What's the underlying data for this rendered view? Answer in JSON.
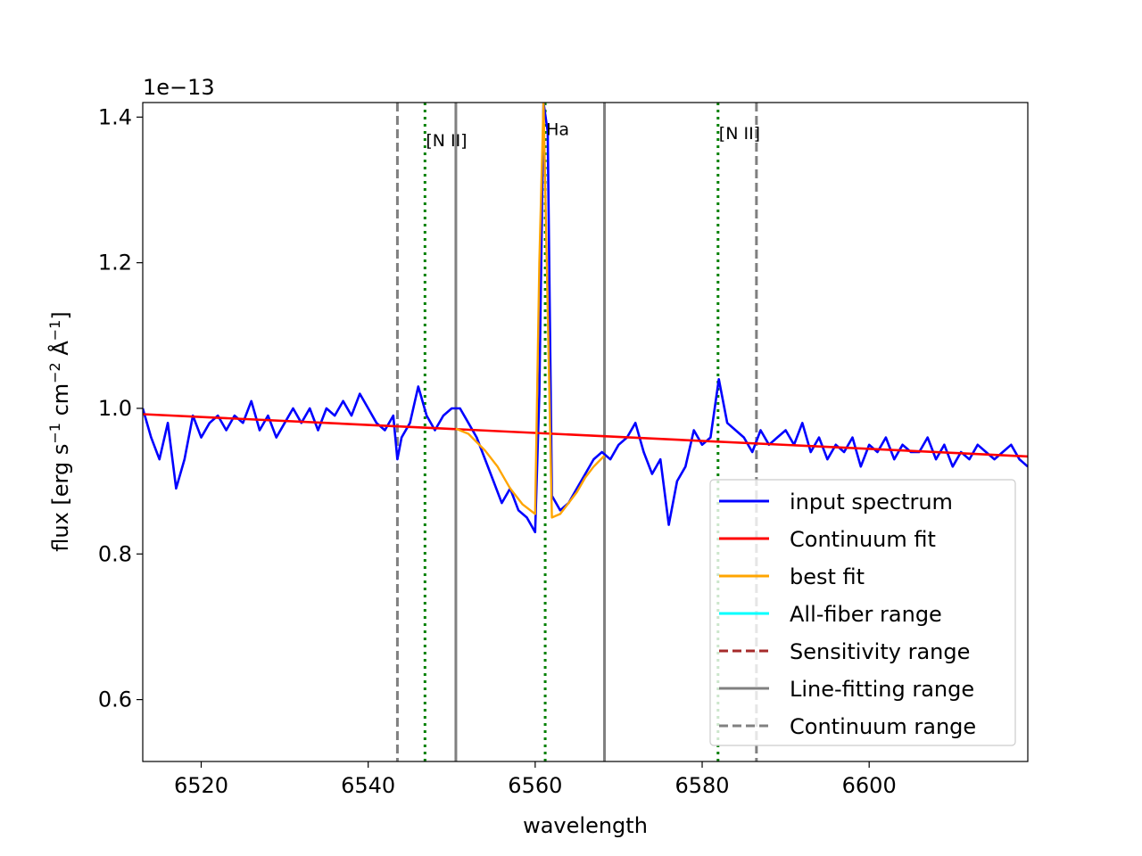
{
  "chart_data": {
    "type": "line",
    "xlabel": "wavelength",
    "ylabel_parts": [
      "flux [erg s",
      "−1",
      " cm",
      "−2",
      " Å",
      "−1",
      "]"
    ],
    "y_offset_text": "1e−13",
    "xlim": [
      6513,
      6619
    ],
    "ylim": [
      0.515,
      1.42
    ],
    "x_ticks": [
      6520,
      6540,
      6560,
      6580,
      6600
    ],
    "y_ticks": [
      0.6,
      0.8,
      1.0,
      1.2,
      1.4
    ],
    "x_tick_labels": [
      "6520",
      "6540",
      "6560",
      "6580",
      "6600"
    ],
    "y_tick_labels": [
      "0.6",
      "0.8",
      "1.0",
      "1.2",
      "1.4"
    ],
    "series": [
      {
        "name": "input spectrum",
        "color": "#0000ff",
        "x": [
          6513,
          6514,
          6515,
          6516,
          6517,
          6518,
          6519,
          6520,
          6521,
          6522,
          6523,
          6524,
          6525,
          6526,
          6527,
          6528,
          6529,
          6530,
          6531,
          6532,
          6533,
          6534,
          6535,
          6536,
          6537,
          6538,
          6539,
          6540,
          6541,
          6542,
          6543,
          6543.5,
          6544,
          6545,
          6546,
          6547,
          6548,
          6549,
          6550,
          6551,
          6552,
          6553,
          6554,
          6555,
          6556,
          6557,
          6558,
          6559,
          6560,
          6560.5,
          6561,
          6561.5,
          6562,
          6563,
          6564,
          6565,
          6566,
          6567,
          6568,
          6569,
          6570,
          6571,
          6572,
          6573,
          6574,
          6575,
          6576,
          6577,
          6578,
          6579,
          6580,
          6581,
          6582,
          6583,
          6584,
          6585,
          6586,
          6587,
          6588,
          6589,
          6590,
          6591,
          6592,
          6593,
          6594,
          6595,
          6596,
          6597,
          6598,
          6599,
          6600,
          6601,
          6602,
          6603,
          6604,
          6605,
          6606,
          6607,
          6608,
          6609,
          6610,
          6611,
          6612,
          6613,
          6614,
          6615,
          6616,
          6617,
          6618,
          6619
        ],
        "y": [
          1.0,
          0.96,
          0.93,
          0.98,
          0.89,
          0.93,
          0.99,
          0.96,
          0.98,
          0.99,
          0.97,
          0.99,
          0.98,
          1.01,
          0.97,
          0.99,
          0.96,
          0.98,
          1.0,
          0.98,
          1.0,
          0.97,
          1.0,
          0.99,
          1.01,
          0.99,
          1.02,
          1.0,
          0.98,
          0.97,
          0.99,
          0.93,
          0.96,
          0.98,
          1.03,
          0.99,
          0.97,
          0.99,
          1.0,
          1.0,
          0.98,
          0.96,
          0.93,
          0.9,
          0.87,
          0.89,
          0.86,
          0.85,
          0.83,
          1.02,
          1.42,
          1.38,
          0.88,
          0.86,
          0.87,
          0.89,
          0.91,
          0.93,
          0.94,
          0.93,
          0.95,
          0.96,
          0.98,
          0.94,
          0.91,
          0.93,
          0.84,
          0.9,
          0.92,
          0.97,
          0.95,
          0.96,
          1.04,
          0.98,
          0.97,
          0.96,
          0.94,
          0.97,
          0.95,
          0.96,
          0.97,
          0.95,
          0.98,
          0.94,
          0.96,
          0.93,
          0.95,
          0.94,
          0.96,
          0.92,
          0.95,
          0.94,
          0.96,
          0.93,
          0.95,
          0.94,
          0.94,
          0.96,
          0.93,
          0.95,
          0.92,
          0.94,
          0.93,
          0.95,
          0.94,
          0.93,
          0.94,
          0.95,
          0.93,
          0.92
        ]
      },
      {
        "name": "Continuum fit",
        "color": "#ff0000",
        "x": [
          6513,
          6619
        ],
        "y": [
          0.992,
          0.934
        ]
      },
      {
        "name": "best fit",
        "color": "#ffa500",
        "x": [
          6550.5,
          6552,
          6554,
          6555.5,
          6557,
          6558.5,
          6560,
          6560.5,
          6561,
          6562,
          6563,
          6564,
          6565,
          6566,
          6567,
          6568.3
        ],
        "y": [
          0.972,
          0.965,
          0.942,
          0.92,
          0.89,
          0.868,
          0.855,
          1.2,
          1.42,
          0.85,
          0.855,
          0.87,
          0.885,
          0.905,
          0.92,
          0.935
        ]
      }
    ],
    "vlines": [
      {
        "group": "continuum",
        "x": 6543.5,
        "color": "#808080",
        "style": "dashed"
      },
      {
        "group": "continuum",
        "x": 6586.5,
        "color": "#808080",
        "style": "dashed"
      },
      {
        "group": "line-fitting",
        "x": 6550.5,
        "color": "#808080",
        "style": "solid"
      },
      {
        "group": "line-fitting",
        "x": 6568.3,
        "color": "#808080",
        "style": "solid"
      },
      {
        "group": "line-center",
        "x": 6546.8,
        "color": "#008000",
        "style": "dotted"
      },
      {
        "group": "line-center",
        "x": 6561.2,
        "color": "#008000",
        "style": "dotted"
      },
      {
        "group": "line-center",
        "x": 6581.9,
        "color": "#008000",
        "style": "dotted"
      }
    ],
    "annotations": [
      {
        "text": "[N II]",
        "x": 6546.8,
        "y": 1.36
      },
      {
        "text": "Ha",
        "x": 6561.2,
        "y": 1.375
      },
      {
        "text": "[N II]",
        "x": 6581.9,
        "y": 1.37
      }
    ],
    "legend": {
      "position": "lower-right",
      "entries": [
        {
          "label": "input spectrum",
          "color": "#0000ff",
          "style": "solid"
        },
        {
          "label": "Continuum fit",
          "color": "#ff0000",
          "style": "solid"
        },
        {
          "label": "best fit",
          "color": "#ffa500",
          "style": "solid"
        },
        {
          "label": "All-fiber range",
          "color": "#00ffff",
          "style": "solid"
        },
        {
          "label": "Sensitivity range",
          "color": "#a52a2a",
          "style": "dashed"
        },
        {
          "label": "Line-fitting range",
          "color": "#808080",
          "style": "solid"
        },
        {
          "label": "Continuum range",
          "color": "#808080",
          "style": "dashed"
        }
      ]
    },
    "grid": false
  }
}
